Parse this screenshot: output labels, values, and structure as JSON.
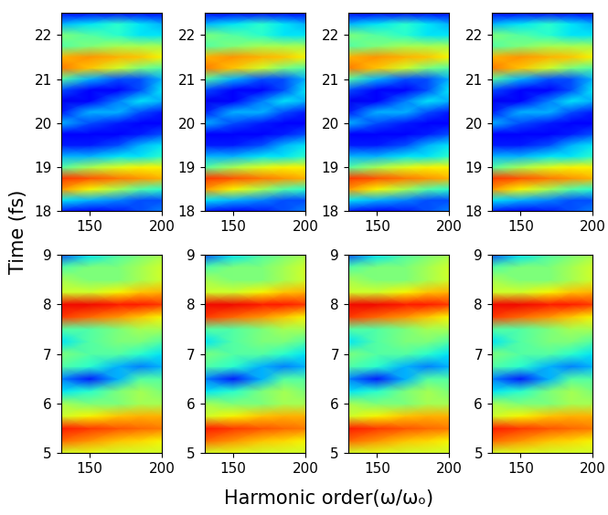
{
  "figure": {
    "xlabel": "Harmonic order(ω/ωₒ)",
    "ylabel": "Time (fs)"
  },
  "chart_data": [
    {
      "type": "heatmap",
      "x": [
        130,
        150,
        170,
        185,
        200
      ],
      "y": [
        18,
        18.25,
        18.5,
        18.75,
        19,
        19.25,
        19.5,
        19.75,
        20,
        20.25,
        20.5,
        20.75,
        21,
        21.25,
        21.5,
        21.75,
        22,
        22.25,
        22.5
      ],
      "xlim": [
        130,
        200
      ],
      "ylim": [
        18,
        22.5
      ],
      "xticks": [
        150,
        200
      ],
      "yticks": [
        18,
        19,
        20,
        21,
        22
      ],
      "clim": [
        0,
        1
      ],
      "cells": [
        [
          0.15,
          0.12,
          0.15,
          0.2,
          0.25
        ],
        [
          0.35,
          0.3,
          0.25,
          0.2,
          0.2
        ],
        [
          0.75,
          0.65,
          0.55,
          0.45,
          0.4
        ],
        [
          0.85,
          0.82,
          0.78,
          0.75,
          0.72
        ],
        [
          0.45,
          0.55,
          0.62,
          0.65,
          0.65
        ],
        [
          0.3,
          0.3,
          0.35,
          0.35,
          0.4
        ],
        [
          0.15,
          0.15,
          0.2,
          0.3,
          0.35
        ],
        [
          0.12,
          0.12,
          0.12,
          0.15,
          0.2
        ],
        [
          0.3,
          0.2,
          0.15,
          0.12,
          0.12
        ],
        [
          0.15,
          0.3,
          0.3,
          0.2,
          0.15
        ],
        [
          0.1,
          0.12,
          0.25,
          0.35,
          0.3
        ],
        [
          0.2,
          0.12,
          0.12,
          0.2,
          0.35
        ],
        [
          0.45,
          0.3,
          0.2,
          0.2,
          0.3
        ],
        [
          0.78,
          0.7,
          0.6,
          0.5,
          0.45
        ],
        [
          0.72,
          0.75,
          0.72,
          0.7,
          0.65
        ],
        [
          0.45,
          0.5,
          0.55,
          0.55,
          0.55
        ],
        [
          0.5,
          0.45,
          0.4,
          0.35,
          0.35
        ],
        [
          0.3,
          0.35,
          0.4,
          0.35,
          0.3
        ],
        [
          0.12,
          0.12,
          0.12,
          0.12,
          0.12
        ]
      ]
    },
    {
      "type": "heatmap",
      "x": [
        130,
        150,
        170,
        185,
        200
      ],
      "y": [
        18,
        18.25,
        18.5,
        18.75,
        19,
        19.25,
        19.5,
        19.75,
        20,
        20.25,
        20.5,
        20.75,
        21,
        21.25,
        21.5,
        21.75,
        22,
        22.25,
        22.5
      ],
      "xlim": [
        130,
        200
      ],
      "ylim": [
        18,
        22.5
      ],
      "xticks": [
        150,
        200
      ],
      "yticks": [
        18,
        19,
        20,
        21,
        22
      ],
      "clim": [
        0,
        1
      ],
      "cells": [
        [
          0.15,
          0.12,
          0.15,
          0.2,
          0.25
        ],
        [
          0.35,
          0.3,
          0.25,
          0.2,
          0.2
        ],
        [
          0.75,
          0.65,
          0.55,
          0.45,
          0.4
        ],
        [
          0.85,
          0.82,
          0.78,
          0.75,
          0.72
        ],
        [
          0.45,
          0.55,
          0.62,
          0.65,
          0.65
        ],
        [
          0.3,
          0.3,
          0.35,
          0.35,
          0.4
        ],
        [
          0.15,
          0.15,
          0.2,
          0.3,
          0.35
        ],
        [
          0.12,
          0.12,
          0.12,
          0.15,
          0.2
        ],
        [
          0.3,
          0.2,
          0.15,
          0.12,
          0.12
        ],
        [
          0.15,
          0.3,
          0.3,
          0.2,
          0.15
        ],
        [
          0.1,
          0.12,
          0.25,
          0.35,
          0.3
        ],
        [
          0.2,
          0.12,
          0.12,
          0.2,
          0.35
        ],
        [
          0.45,
          0.3,
          0.2,
          0.2,
          0.3
        ],
        [
          0.78,
          0.7,
          0.6,
          0.5,
          0.45
        ],
        [
          0.72,
          0.75,
          0.72,
          0.7,
          0.65
        ],
        [
          0.45,
          0.5,
          0.55,
          0.55,
          0.55
        ],
        [
          0.5,
          0.45,
          0.4,
          0.35,
          0.35
        ],
        [
          0.3,
          0.35,
          0.4,
          0.35,
          0.3
        ],
        [
          0.12,
          0.12,
          0.12,
          0.12,
          0.12
        ]
      ]
    },
    {
      "type": "heatmap",
      "x": [
        130,
        150,
        170,
        185,
        200
      ],
      "y": [
        18,
        18.25,
        18.5,
        18.75,
        19,
        19.25,
        19.5,
        19.75,
        20,
        20.25,
        20.5,
        20.75,
        21,
        21.25,
        21.5,
        21.75,
        22,
        22.25,
        22.5
      ],
      "xlim": [
        130,
        200
      ],
      "ylim": [
        18,
        22.5
      ],
      "xticks": [
        150,
        200
      ],
      "yticks": [
        18,
        19,
        20,
        21,
        22
      ],
      "clim": [
        0,
        1
      ],
      "cells": [
        [
          0.15,
          0.12,
          0.15,
          0.2,
          0.25
        ],
        [
          0.35,
          0.3,
          0.25,
          0.2,
          0.2
        ],
        [
          0.75,
          0.65,
          0.55,
          0.45,
          0.4
        ],
        [
          0.85,
          0.82,
          0.78,
          0.75,
          0.72
        ],
        [
          0.45,
          0.55,
          0.62,
          0.65,
          0.65
        ],
        [
          0.3,
          0.3,
          0.35,
          0.35,
          0.4
        ],
        [
          0.15,
          0.15,
          0.2,
          0.3,
          0.35
        ],
        [
          0.12,
          0.12,
          0.12,
          0.15,
          0.2
        ],
        [
          0.3,
          0.2,
          0.15,
          0.12,
          0.12
        ],
        [
          0.15,
          0.3,
          0.3,
          0.2,
          0.15
        ],
        [
          0.1,
          0.12,
          0.25,
          0.35,
          0.3
        ],
        [
          0.2,
          0.12,
          0.12,
          0.2,
          0.35
        ],
        [
          0.45,
          0.3,
          0.2,
          0.2,
          0.3
        ],
        [
          0.78,
          0.7,
          0.6,
          0.5,
          0.45
        ],
        [
          0.72,
          0.75,
          0.72,
          0.7,
          0.65
        ],
        [
          0.45,
          0.5,
          0.55,
          0.55,
          0.55
        ],
        [
          0.5,
          0.45,
          0.4,
          0.35,
          0.35
        ],
        [
          0.3,
          0.35,
          0.4,
          0.35,
          0.3
        ],
        [
          0.12,
          0.12,
          0.12,
          0.12,
          0.12
        ]
      ]
    },
    {
      "type": "heatmap",
      "x": [
        130,
        150,
        170,
        185,
        200
      ],
      "y": [
        18,
        18.25,
        18.5,
        18.75,
        19,
        19.25,
        19.5,
        19.75,
        20,
        20.25,
        20.5,
        20.75,
        21,
        21.25,
        21.5,
        21.75,
        22,
        22.25,
        22.5
      ],
      "xlim": [
        130,
        200
      ],
      "ylim": [
        18,
        22.5
      ],
      "xticks": [
        150,
        200
      ],
      "yticks": [
        18,
        19,
        20,
        21,
        22
      ],
      "clim": [
        0,
        1
      ],
      "cells": [
        [
          0.15,
          0.12,
          0.15,
          0.2,
          0.25
        ],
        [
          0.35,
          0.3,
          0.25,
          0.2,
          0.2
        ],
        [
          0.75,
          0.65,
          0.55,
          0.45,
          0.4
        ],
        [
          0.85,
          0.82,
          0.78,
          0.75,
          0.72
        ],
        [
          0.45,
          0.55,
          0.62,
          0.65,
          0.65
        ],
        [
          0.3,
          0.3,
          0.35,
          0.35,
          0.4
        ],
        [
          0.15,
          0.15,
          0.2,
          0.3,
          0.35
        ],
        [
          0.12,
          0.12,
          0.12,
          0.15,
          0.2
        ],
        [
          0.3,
          0.2,
          0.15,
          0.12,
          0.12
        ],
        [
          0.15,
          0.3,
          0.3,
          0.2,
          0.15
        ],
        [
          0.1,
          0.12,
          0.25,
          0.35,
          0.3
        ],
        [
          0.2,
          0.12,
          0.12,
          0.2,
          0.35
        ],
        [
          0.45,
          0.3,
          0.2,
          0.2,
          0.3
        ],
        [
          0.78,
          0.7,
          0.6,
          0.5,
          0.45
        ],
        [
          0.72,
          0.75,
          0.72,
          0.7,
          0.65
        ],
        [
          0.45,
          0.5,
          0.55,
          0.55,
          0.55
        ],
        [
          0.5,
          0.45,
          0.4,
          0.35,
          0.35
        ],
        [
          0.3,
          0.35,
          0.4,
          0.35,
          0.3
        ],
        [
          0.12,
          0.12,
          0.12,
          0.12,
          0.12
        ]
      ]
    },
    {
      "type": "heatmap",
      "x": [
        130,
        150,
        170,
        185,
        200
      ],
      "y": [
        5,
        5.25,
        5.5,
        5.75,
        6,
        6.25,
        6.5,
        6.75,
        7,
        7.25,
        7.5,
        7.75,
        8,
        8.25,
        8.5,
        8.75,
        9
      ],
      "xlim": [
        130,
        200
      ],
      "ylim": [
        5,
        9
      ],
      "xticks": [
        150,
        200
      ],
      "yticks": [
        5,
        6,
        7,
        8,
        9
      ],
      "clim": [
        0,
        1
      ],
      "cells": [
        [
          0.6,
          0.62,
          0.6,
          0.6,
          0.6
        ],
        [
          0.8,
          0.75,
          0.7,
          0.68,
          0.65
        ],
        [
          0.88,
          0.85,
          0.82,
          0.8,
          0.78
        ],
        [
          0.6,
          0.65,
          0.7,
          0.72,
          0.72
        ],
        [
          0.55,
          0.5,
          0.5,
          0.55,
          0.55
        ],
        [
          0.35,
          0.4,
          0.5,
          0.55,
          0.5
        ],
        [
          0.25,
          0.15,
          0.3,
          0.45,
          0.45
        ],
        [
          0.45,
          0.4,
          0.3,
          0.25,
          0.3
        ],
        [
          0.5,
          0.45,
          0.45,
          0.4,
          0.35
        ],
        [
          0.35,
          0.45,
          0.5,
          0.5,
          0.45
        ],
        [
          0.45,
          0.45,
          0.5,
          0.55,
          0.55
        ],
        [
          0.85,
          0.8,
          0.75,
          0.7,
          0.65
        ],
        [
          0.9,
          0.9,
          0.88,
          0.88,
          0.85
        ],
        [
          0.6,
          0.6,
          0.65,
          0.7,
          0.72
        ],
        [
          0.55,
          0.5,
          0.5,
          0.55,
          0.6
        ],
        [
          0.45,
          0.5,
          0.5,
          0.55,
          0.6
        ],
        [
          0.2,
          0.35,
          0.45,
          0.5,
          0.55
        ]
      ]
    },
    {
      "type": "heatmap",
      "x": [
        130,
        150,
        170,
        185,
        200
      ],
      "y": [
        5,
        5.25,
        5.5,
        5.75,
        6,
        6.25,
        6.5,
        6.75,
        7,
        7.25,
        7.5,
        7.75,
        8,
        8.25,
        8.5,
        8.75,
        9
      ],
      "xlim": [
        130,
        200
      ],
      "ylim": [
        5,
        9
      ],
      "xticks": [
        150,
        200
      ],
      "yticks": [
        5,
        6,
        7,
        8,
        9
      ],
      "clim": [
        0,
        1
      ],
      "cells": [
        [
          0.6,
          0.62,
          0.6,
          0.6,
          0.6
        ],
        [
          0.8,
          0.75,
          0.7,
          0.68,
          0.65
        ],
        [
          0.88,
          0.85,
          0.82,
          0.8,
          0.78
        ],
        [
          0.6,
          0.65,
          0.7,
          0.72,
          0.72
        ],
        [
          0.55,
          0.5,
          0.5,
          0.55,
          0.55
        ],
        [
          0.35,
          0.4,
          0.5,
          0.55,
          0.5
        ],
        [
          0.25,
          0.15,
          0.3,
          0.45,
          0.45
        ],
        [
          0.45,
          0.4,
          0.3,
          0.25,
          0.3
        ],
        [
          0.5,
          0.45,
          0.45,
          0.4,
          0.35
        ],
        [
          0.35,
          0.45,
          0.5,
          0.5,
          0.45
        ],
        [
          0.45,
          0.45,
          0.5,
          0.55,
          0.55
        ],
        [
          0.85,
          0.8,
          0.75,
          0.7,
          0.65
        ],
        [
          0.9,
          0.9,
          0.88,
          0.88,
          0.85
        ],
        [
          0.6,
          0.6,
          0.65,
          0.7,
          0.72
        ],
        [
          0.55,
          0.5,
          0.5,
          0.55,
          0.6
        ],
        [
          0.45,
          0.5,
          0.5,
          0.55,
          0.6
        ],
        [
          0.2,
          0.35,
          0.45,
          0.5,
          0.55
        ]
      ]
    },
    {
      "type": "heatmap",
      "x": [
        130,
        150,
        170,
        185,
        200
      ],
      "y": [
        5,
        5.25,
        5.5,
        5.75,
        6,
        6.25,
        6.5,
        6.75,
        7,
        7.25,
        7.5,
        7.75,
        8,
        8.25,
        8.5,
        8.75,
        9
      ],
      "xlim": [
        130,
        200
      ],
      "ylim": [
        5,
        9
      ],
      "xticks": [
        150,
        200
      ],
      "yticks": [
        5,
        6,
        7,
        8,
        9
      ],
      "clim": [
        0,
        1
      ],
      "cells": [
        [
          0.6,
          0.62,
          0.6,
          0.6,
          0.6
        ],
        [
          0.8,
          0.75,
          0.7,
          0.68,
          0.65
        ],
        [
          0.88,
          0.85,
          0.82,
          0.8,
          0.78
        ],
        [
          0.6,
          0.65,
          0.7,
          0.72,
          0.72
        ],
        [
          0.55,
          0.5,
          0.5,
          0.55,
          0.55
        ],
        [
          0.35,
          0.4,
          0.5,
          0.55,
          0.5
        ],
        [
          0.25,
          0.15,
          0.3,
          0.45,
          0.45
        ],
        [
          0.45,
          0.4,
          0.3,
          0.25,
          0.3
        ],
        [
          0.5,
          0.45,
          0.45,
          0.4,
          0.35
        ],
        [
          0.35,
          0.45,
          0.5,
          0.5,
          0.45
        ],
        [
          0.45,
          0.45,
          0.5,
          0.55,
          0.55
        ],
        [
          0.85,
          0.8,
          0.75,
          0.7,
          0.65
        ],
        [
          0.9,
          0.9,
          0.88,
          0.88,
          0.85
        ],
        [
          0.6,
          0.6,
          0.65,
          0.7,
          0.72
        ],
        [
          0.55,
          0.5,
          0.5,
          0.55,
          0.6
        ],
        [
          0.45,
          0.5,
          0.5,
          0.55,
          0.6
        ],
        [
          0.2,
          0.35,
          0.45,
          0.5,
          0.55
        ]
      ]
    },
    {
      "type": "heatmap",
      "x": [
        130,
        150,
        170,
        185,
        200
      ],
      "y": [
        5,
        5.25,
        5.5,
        5.75,
        6,
        6.25,
        6.5,
        6.75,
        7,
        7.25,
        7.5,
        7.75,
        8,
        8.25,
        8.5,
        8.75,
        9
      ],
      "xlim": [
        130,
        200
      ],
      "ylim": [
        5,
        9
      ],
      "xticks": [
        150,
        200
      ],
      "yticks": [
        5,
        6,
        7,
        8,
        9
      ],
      "clim": [
        0,
        1
      ],
      "cells": [
        [
          0.6,
          0.62,
          0.6,
          0.6,
          0.6
        ],
        [
          0.8,
          0.75,
          0.7,
          0.68,
          0.65
        ],
        [
          0.88,
          0.85,
          0.82,
          0.8,
          0.78
        ],
        [
          0.6,
          0.65,
          0.7,
          0.72,
          0.72
        ],
        [
          0.55,
          0.5,
          0.5,
          0.55,
          0.55
        ],
        [
          0.35,
          0.4,
          0.5,
          0.55,
          0.5
        ],
        [
          0.25,
          0.15,
          0.3,
          0.45,
          0.45
        ],
        [
          0.45,
          0.4,
          0.3,
          0.25,
          0.3
        ],
        [
          0.5,
          0.45,
          0.45,
          0.4,
          0.35
        ],
        [
          0.35,
          0.45,
          0.5,
          0.5,
          0.45
        ],
        [
          0.45,
          0.45,
          0.5,
          0.55,
          0.55
        ],
        [
          0.85,
          0.8,
          0.75,
          0.7,
          0.65
        ],
        [
          0.9,
          0.9,
          0.88,
          0.88,
          0.85
        ],
        [
          0.6,
          0.6,
          0.65,
          0.7,
          0.72
        ],
        [
          0.55,
          0.5,
          0.5,
          0.55,
          0.6
        ],
        [
          0.45,
          0.5,
          0.5,
          0.55,
          0.6
        ],
        [
          0.2,
          0.35,
          0.45,
          0.5,
          0.55
        ]
      ]
    }
  ]
}
